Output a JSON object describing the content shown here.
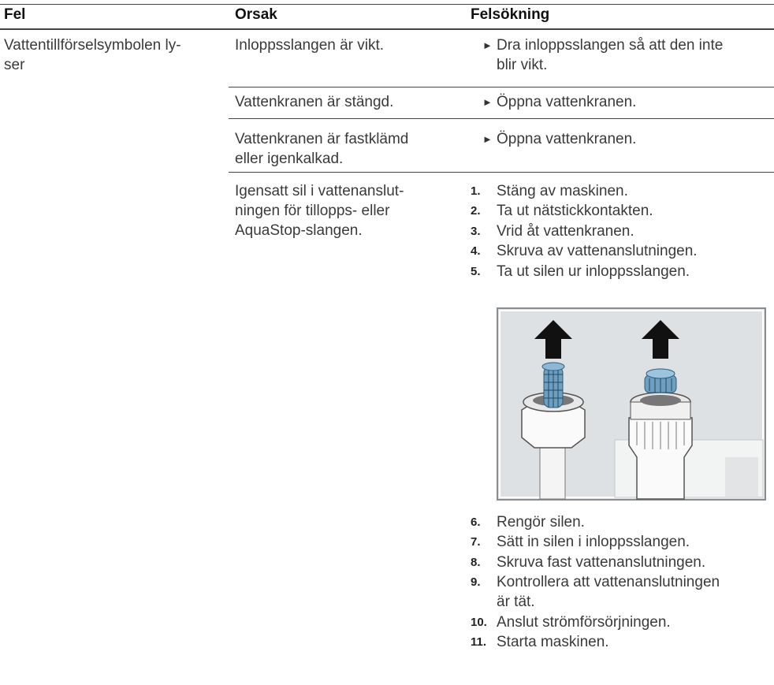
{
  "table": {
    "header": [
      "Fel",
      "Orsak",
      "Felsökning"
    ],
    "fault": "Vattentillförselsymbolen ly-\nser",
    "rows": [
      {
        "cause": "Inloppsslangen är vikt.",
        "remedy": "Dra inloppsslangen så att den inte\nblir vikt."
      },
      {
        "cause": "Vattenkranen är stängd.",
        "remedy": "Öppna vattenkranen."
      },
      {
        "cause": "Vattenkranen är fastklämd\neller igenkalkad.",
        "remedy": "Öppna vattenkranen."
      },
      {
        "cause": "Igensatt sil i vattenanslut-\nningen för tillopps- eller\nAquaStop-slangen.",
        "steps": [
          {
            "n": "1.",
            "text": "Stäng av maskinen."
          },
          {
            "n": "2.",
            "text": "Ta ut nätstickkontakten."
          },
          {
            "n": "3.",
            "text": "Vrid åt vattenkranen."
          },
          {
            "n": "4.",
            "text": "Skruva av vattenanslutningen."
          },
          {
            "n": "5.",
            "text": "Ta ut silen ur inloppsslangen."
          },
          {
            "n": "6.",
            "text": "Rengör silen."
          },
          {
            "n": "7.",
            "text": "Sätt in silen i inloppsslangen."
          },
          {
            "n": "8.",
            "text": "Skruva fast vattenanslutningen."
          },
          {
            "n": "9.",
            "text": "Kontrollera att vattenanslutningen\när tät."
          },
          {
            "n": "10.",
            "text": "Anslut strömförsörjningen."
          },
          {
            "n": "11.",
            "text": "Starta maskinen."
          }
        ]
      }
    ]
  }
}
